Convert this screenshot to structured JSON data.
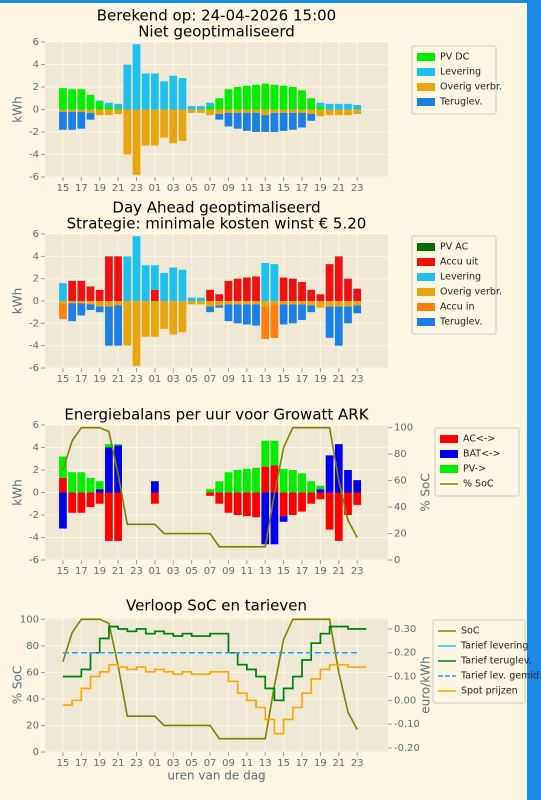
{
  "chart_data": [
    {
      "type": "bar",
      "title": [
        "Berekend op: 24-04-2026 15:00",
        "Niet geoptimaliseerd"
      ],
      "ylabel": "kWh",
      "categories": [
        "15",
        null,
        "17",
        null,
        "19",
        null,
        "21",
        null,
        "23",
        null,
        "01",
        null,
        "03",
        null,
        "05",
        null,
        "07",
        null,
        "09",
        null,
        "11",
        null,
        "13",
        null,
        "15",
        null,
        "17",
        null,
        "19",
        null,
        "21",
        null,
        "23"
      ],
      "ylim": [
        -6,
        6
      ],
      "yticks": [
        -6,
        -4,
        -2,
        0,
        2,
        4,
        6
      ],
      "grid": true,
      "legend": "outside-right",
      "series": [
        {
          "name": "PV DC",
          "color": "#00ee00",
          "values": [
            1.9,
            1.8,
            1.8,
            1.3,
            0.7,
            0.3,
            0.1,
            0,
            0,
            0,
            0,
            0,
            0,
            0,
            0,
            0,
            0.3,
            1.0,
            1.8,
            2.0,
            2.1,
            2.2,
            2.3,
            2.2,
            2.1,
            2.0,
            1.7,
            1.0,
            0.3,
            0,
            0,
            0,
            0
          ]
        },
        {
          "name": "Levering",
          "color": "#1ec0f0",
          "values": [
            0,
            0,
            0,
            0,
            0.1,
            0.3,
            0.4,
            4.0,
            5.8,
            3.2,
            3.2,
            2.5,
            3.0,
            2.8,
            0.3,
            0.3,
            0.3,
            0,
            0,
            0,
            0,
            0,
            0,
            0,
            0,
            0,
            0,
            0,
            0.3,
            0.5,
            0.5,
            0.5,
            0.4
          ]
        },
        {
          "name": "Overig verbr.",
          "color": "#e8a50f",
          "values": [
            -0.2,
            -0.2,
            -0.2,
            -0.3,
            -0.5,
            -0.5,
            -0.4,
            -4.0,
            -5.8,
            -3.2,
            -3.2,
            -2.5,
            -3.0,
            -2.8,
            -0.3,
            -0.3,
            -0.5,
            -0.4,
            -0.3,
            -0.3,
            -0.3,
            -0.3,
            -0.5,
            -0.3,
            -0.3,
            -0.3,
            -0.3,
            -0.4,
            -0.6,
            -0.5,
            -0.5,
            -0.5,
            -0.4
          ]
        },
        {
          "name": "Teruglev.",
          "color": "#1a7fe6",
          "values": [
            -1.6,
            -1.6,
            -1.5,
            -0.6,
            0,
            0,
            0,
            0,
            0,
            0,
            0,
            0,
            0,
            0,
            0,
            0,
            0,
            -0.5,
            -1.2,
            -1.4,
            -1.6,
            -1.7,
            -1.5,
            -1.7,
            -1.6,
            -1.5,
            -1.3,
            -0.6,
            0,
            0,
            0,
            0,
            0
          ]
        }
      ]
    },
    {
      "type": "bar",
      "title": [
        "Day Ahead geoptimaliseerd",
        "Strategie: minimale kosten winst € 5.20"
      ],
      "ylabel": "kWh",
      "categories": [
        "15",
        null,
        "17",
        null,
        "19",
        null,
        "21",
        null,
        "23",
        null,
        "01",
        null,
        "03",
        null,
        "05",
        null,
        "07",
        null,
        "09",
        null,
        "11",
        null,
        "13",
        null,
        "15",
        null,
        "17",
        null,
        "19",
        null,
        "21",
        null,
        "23"
      ],
      "ylim": [
        -6,
        6
      ],
      "yticks": [
        -6,
        -4,
        -2,
        0,
        2,
        4,
        6
      ],
      "grid": true,
      "legend": "outside-right",
      "series": [
        {
          "name": "PV AC",
          "color": "#007000",
          "values": [
            0,
            0,
            0,
            0,
            0,
            0,
            0,
            0,
            0,
            0,
            0,
            0,
            0,
            0,
            0,
            0,
            0,
            0,
            0,
            0,
            0,
            0,
            0,
            0,
            0,
            0,
            0,
            0,
            0,
            0,
            0,
            0,
            0
          ]
        },
        {
          "name": "Accu uit",
          "color": "#ee1111",
          "values": [
            0,
            1.8,
            1.8,
            1.3,
            1.0,
            4.0,
            4.0,
            0,
            0,
            0,
            1.0,
            0,
            0,
            0,
            0,
            0,
            1.0,
            0.6,
            1.8,
            2.0,
            2.1,
            2.2,
            0,
            0,
            2.1,
            2.0,
            1.7,
            1.0,
            0.6,
            3.3,
            4.0,
            2.0,
            1.1
          ]
        },
        {
          "name": "Levering",
          "color": "#1ec0f0",
          "values": [
            1.6,
            0,
            0,
            0,
            0,
            0,
            0,
            4.0,
            5.8,
            3.2,
            2.2,
            2.5,
            3.0,
            2.8,
            0.3,
            0.3,
            0,
            0,
            0,
            0,
            0,
            0,
            3.4,
            3.3,
            0,
            0,
            0,
            0,
            0,
            0,
            0,
            0,
            0
          ]
        },
        {
          "name": "Overig verbr.",
          "color": "#e8a50f",
          "values": [
            -0.2,
            -0.2,
            -0.2,
            -0.3,
            -0.5,
            -0.5,
            -0.4,
            -4.0,
            -5.8,
            -3.2,
            -3.2,
            -2.5,
            -3.0,
            -2.8,
            -0.3,
            -0.3,
            -0.5,
            -0.4,
            -0.3,
            -0.3,
            -0.3,
            -0.3,
            -0.5,
            -0.3,
            -0.3,
            -0.3,
            -0.3,
            -0.4,
            -0.6,
            -0.5,
            -0.5,
            -0.5,
            -0.4
          ]
        },
        {
          "name": "Accu in",
          "color": "#ff7f0e",
          "values": [
            -1.4,
            0,
            0,
            0,
            0,
            0,
            0,
            0,
            0,
            0,
            0,
            0,
            0,
            0,
            0,
            0,
            0,
            0,
            0,
            0,
            0,
            0,
            -2.9,
            -3.0,
            0,
            0,
            0,
            0,
            0,
            0,
            0,
            0,
            0
          ]
        },
        {
          "name": "Teruglev.",
          "color": "#1a7fe6",
          "values": [
            0,
            -1.6,
            -1.1,
            -0.5,
            -0.5,
            -3.5,
            -3.6,
            0,
            0,
            0,
            0,
            0,
            0,
            0,
            0,
            0,
            -0.5,
            -0.2,
            -1.5,
            -1.7,
            -1.8,
            -1.9,
            0,
            0,
            -1.8,
            -1.7,
            -1.4,
            -0.6,
            0,
            -2.8,
            -3.5,
            -1.5,
            -0.7
          ]
        }
      ]
    },
    {
      "type": "bar",
      "title": [
        "Energiebalans per uur voor Growatt ARK"
      ],
      "ylabel": "kWh",
      "y2label": "% SoC",
      "categories": [
        "15",
        null,
        "17",
        null,
        "19",
        null,
        "21",
        null,
        "23",
        null,
        "01",
        null,
        "03",
        null,
        "05",
        null,
        "07",
        null,
        "09",
        null,
        "11",
        null,
        "13",
        null,
        "15",
        null,
        "17",
        null,
        "19",
        null,
        "21",
        null,
        "23"
      ],
      "ylim": [
        -6,
        6
      ],
      "yticks": [
        -6,
        -4,
        -2,
        0,
        2,
        4,
        6
      ],
      "y2lim": [
        0,
        102
      ],
      "y2ticks": [
        0,
        20,
        40,
        60,
        80,
        100
      ],
      "grid": true,
      "legend": "outside-right",
      "series": [
        {
          "name": "AC<->",
          "color": "#ff0000",
          "values": [
            1.3,
            -1.8,
            -1.8,
            -1.3,
            -1.0,
            -4.3,
            -4.3,
            0,
            0,
            0,
            -1.0,
            0,
            0,
            0,
            0,
            0,
            -0.3,
            -1.0,
            -1.8,
            -2.0,
            -2.1,
            -2.2,
            2.3,
            2.4,
            -2.1,
            -2.0,
            -1.7,
            -1.0,
            -0.6,
            -3.3,
            -4.3,
            -2.0,
            -1.1
          ]
        },
        {
          "name": "BAT<->",
          "color": "#0000ee",
          "values": [
            -3.2,
            0,
            0,
            0,
            0.3,
            4.0,
            4.2,
            0,
            0,
            0,
            1.0,
            0,
            0,
            0,
            0,
            0,
            0,
            0,
            0,
            0,
            0,
            0,
            -4.6,
            -4.6,
            -0.5,
            0,
            0,
            0,
            0.3,
            3.3,
            4.3,
            2.0,
            1.1
          ]
        },
        {
          "name": "PV->",
          "color": "#00ee00",
          "values": [
            1.9,
            1.8,
            1.8,
            1.3,
            0.7,
            0.3,
            0.1,
            0,
            0,
            0,
            0,
            0,
            0,
            0,
            0,
            0,
            0.3,
            1.0,
            1.8,
            2.0,
            2.1,
            2.2,
            2.3,
            2.2,
            2.1,
            2.0,
            1.7,
            1.0,
            0.3,
            0,
            0,
            0,
            0
          ]
        },
        {
          "name": "% SoC",
          "color": "#808000",
          "type": "line",
          "axis": "y2",
          "values": [
            68,
            90,
            100,
            100,
            100,
            97,
            65,
            27,
            27,
            27,
            27,
            20,
            20,
            20,
            20,
            20,
            20,
            10,
            10,
            10,
            10,
            10,
            10,
            50,
            85,
            100,
            100,
            100,
            100,
            100,
            60,
            30,
            17
          ]
        }
      ]
    },
    {
      "type": "line",
      "title": [
        "Verloop SoC en tarieven"
      ],
      "ylabel": "% SoC",
      "y2label": "euro/kWh",
      "xlabel": "uren van de dag",
      "categories": [
        "15",
        null,
        "17",
        null,
        "19",
        null,
        "21",
        null,
        "23",
        null,
        "01",
        null,
        "03",
        null,
        "05",
        null,
        "07",
        null,
        "09",
        null,
        "11",
        null,
        "13",
        null,
        "15",
        null,
        "17",
        null,
        "19",
        null,
        "21",
        null,
        "23"
      ],
      "ylim": [
        0,
        101
      ],
      "yticks": [
        0,
        20,
        40,
        60,
        80,
        100
      ],
      "y2lim": [
        -0.217,
        0.346
      ],
      "y2ticks": [
        {
          "value": -0.2,
          "label": "-0.20"
        },
        {
          "value": -0.1,
          "label": "-0.10"
        },
        {
          "value": 0,
          "label": "0.00"
        },
        {
          "value": 0.1,
          "label": "0.10"
        },
        {
          "value": 0.2,
          "label": "0.20"
        },
        {
          "value": 0.3,
          "label": "0.30"
        }
      ],
      "grid": true,
      "legend": "outside-right",
      "series": [
        {
          "name": "SoC",
          "color": "#808000",
          "values": [
            68,
            90,
            100,
            100,
            100,
            97,
            65,
            27,
            27,
            27,
            27,
            20,
            20,
            20,
            20,
            20,
            20,
            10,
            10,
            10,
            10,
            10,
            10,
            50,
            85,
            100,
            100,
            100,
            100,
            100,
            60,
            30,
            17
          ]
        },
        {
          "name": "Tarief levering",
          "color": "#1ec0f0",
          "axis": "y2",
          "step": true,
          "values": [
            0.1,
            0.1,
            0.13,
            0.2,
            0.26,
            0.31,
            0.3,
            0.29,
            0.3,
            0.28,
            0.29,
            0.28,
            0.27,
            0.28,
            0.27,
            0.27,
            0.28,
            0.28,
            0.2,
            0.15,
            0.13,
            0.1,
            0.05,
            0.0,
            0.05,
            0.1,
            0.17,
            0.24,
            0.28,
            0.31,
            0.31,
            0.3,
            0.3
          ]
        },
        {
          "name": "Tarief teruglev.",
          "color": "#008000",
          "axis": "y2",
          "step": true,
          "values": [
            0.1,
            0.1,
            0.13,
            0.2,
            0.26,
            0.31,
            0.3,
            0.29,
            0.3,
            0.28,
            0.29,
            0.28,
            0.27,
            0.28,
            0.27,
            0.27,
            0.28,
            0.28,
            0.2,
            0.15,
            0.13,
            0.1,
            0.05,
            0.0,
            0.05,
            0.1,
            0.17,
            0.24,
            0.28,
            0.31,
            0.31,
            0.3,
            0.3
          ]
        },
        {
          "name": "Tarief lev. gemid.",
          "color": "#1f9fff",
          "axis": "y2",
          "dash": true,
          "values": [
            0.2,
            0.2,
            0.2,
            0.2,
            0.2,
            0.2,
            0.2,
            0.2,
            0.2,
            0.2,
            0.2,
            0.2,
            0.2,
            0.2,
            0.2,
            0.2,
            0.2,
            0.2,
            0.2,
            0.2,
            0.2,
            0.2,
            0.2,
            0.2,
            0.2,
            0.2,
            0.2,
            0.2,
            0.2,
            0.2,
            0.2,
            0.2,
            0.2
          ]
        },
        {
          "name": "Spot prijzen",
          "color": "#ffa500",
          "axis": "y2",
          "step": true,
          "values": [
            -0.02,
            0.0,
            0.05,
            0.1,
            0.12,
            0.15,
            0.14,
            0.13,
            0.14,
            0.12,
            0.13,
            0.12,
            0.11,
            0.12,
            0.11,
            0.11,
            0.12,
            0.12,
            0.08,
            0.03,
            0.0,
            -0.03,
            -0.08,
            -0.14,
            -0.08,
            -0.03,
            0.03,
            0.09,
            0.13,
            0.15,
            0.15,
            0.14,
            0.14
          ]
        }
      ]
    }
  ]
}
